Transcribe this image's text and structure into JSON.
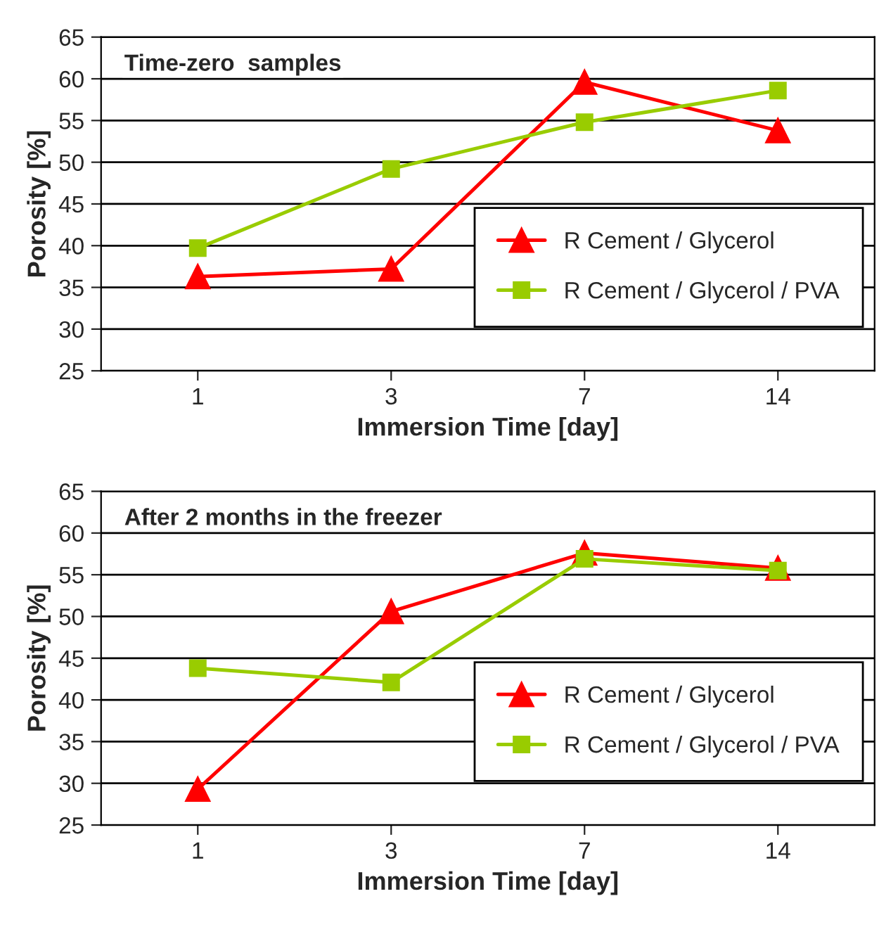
{
  "chart_data": [
    {
      "type": "line",
      "title": "Time-zero  samples",
      "xlabel": "Immersion Time [day]",
      "ylabel": "Porosity [%]",
      "categories": [
        "1",
        "3",
        "7",
        "14"
      ],
      "ylim": [
        25,
        65
      ],
      "yticks": [
        25,
        30,
        35,
        40,
        45,
        50,
        55,
        60,
        65
      ],
      "grid": "y",
      "legend": "right",
      "series": [
        {
          "name": "R Cement / Glycerol",
          "color": "#ff0000",
          "marker": "triangle",
          "values": [
            36.3,
            37.2,
            59.6,
            53.8
          ]
        },
        {
          "name": "R Cement / Glycerol / PVA",
          "color": "#99cc00",
          "marker": "square",
          "values": [
            39.7,
            49.2,
            54.8,
            58.6
          ]
        }
      ]
    },
    {
      "type": "line",
      "title": "After 2 months in the freezer",
      "xlabel": "Immersion Time [day]",
      "ylabel": "Porosity [%]",
      "categories": [
        "1",
        "3",
        "7",
        "14"
      ],
      "ylim": [
        25,
        65
      ],
      "yticks": [
        25,
        30,
        35,
        40,
        45,
        50,
        55,
        60,
        65
      ],
      "grid": "y",
      "legend": "right",
      "series": [
        {
          "name": "R Cement / Glycerol",
          "color": "#ff0000",
          "marker": "triangle",
          "values": [
            29.3,
            50.6,
            57.6,
            55.8
          ]
        },
        {
          "name": "R Cement / Glycerol / PVA",
          "color": "#99cc00",
          "marker": "square",
          "values": [
            43.8,
            42.1,
            56.9,
            55.5
          ]
        }
      ]
    }
  ]
}
